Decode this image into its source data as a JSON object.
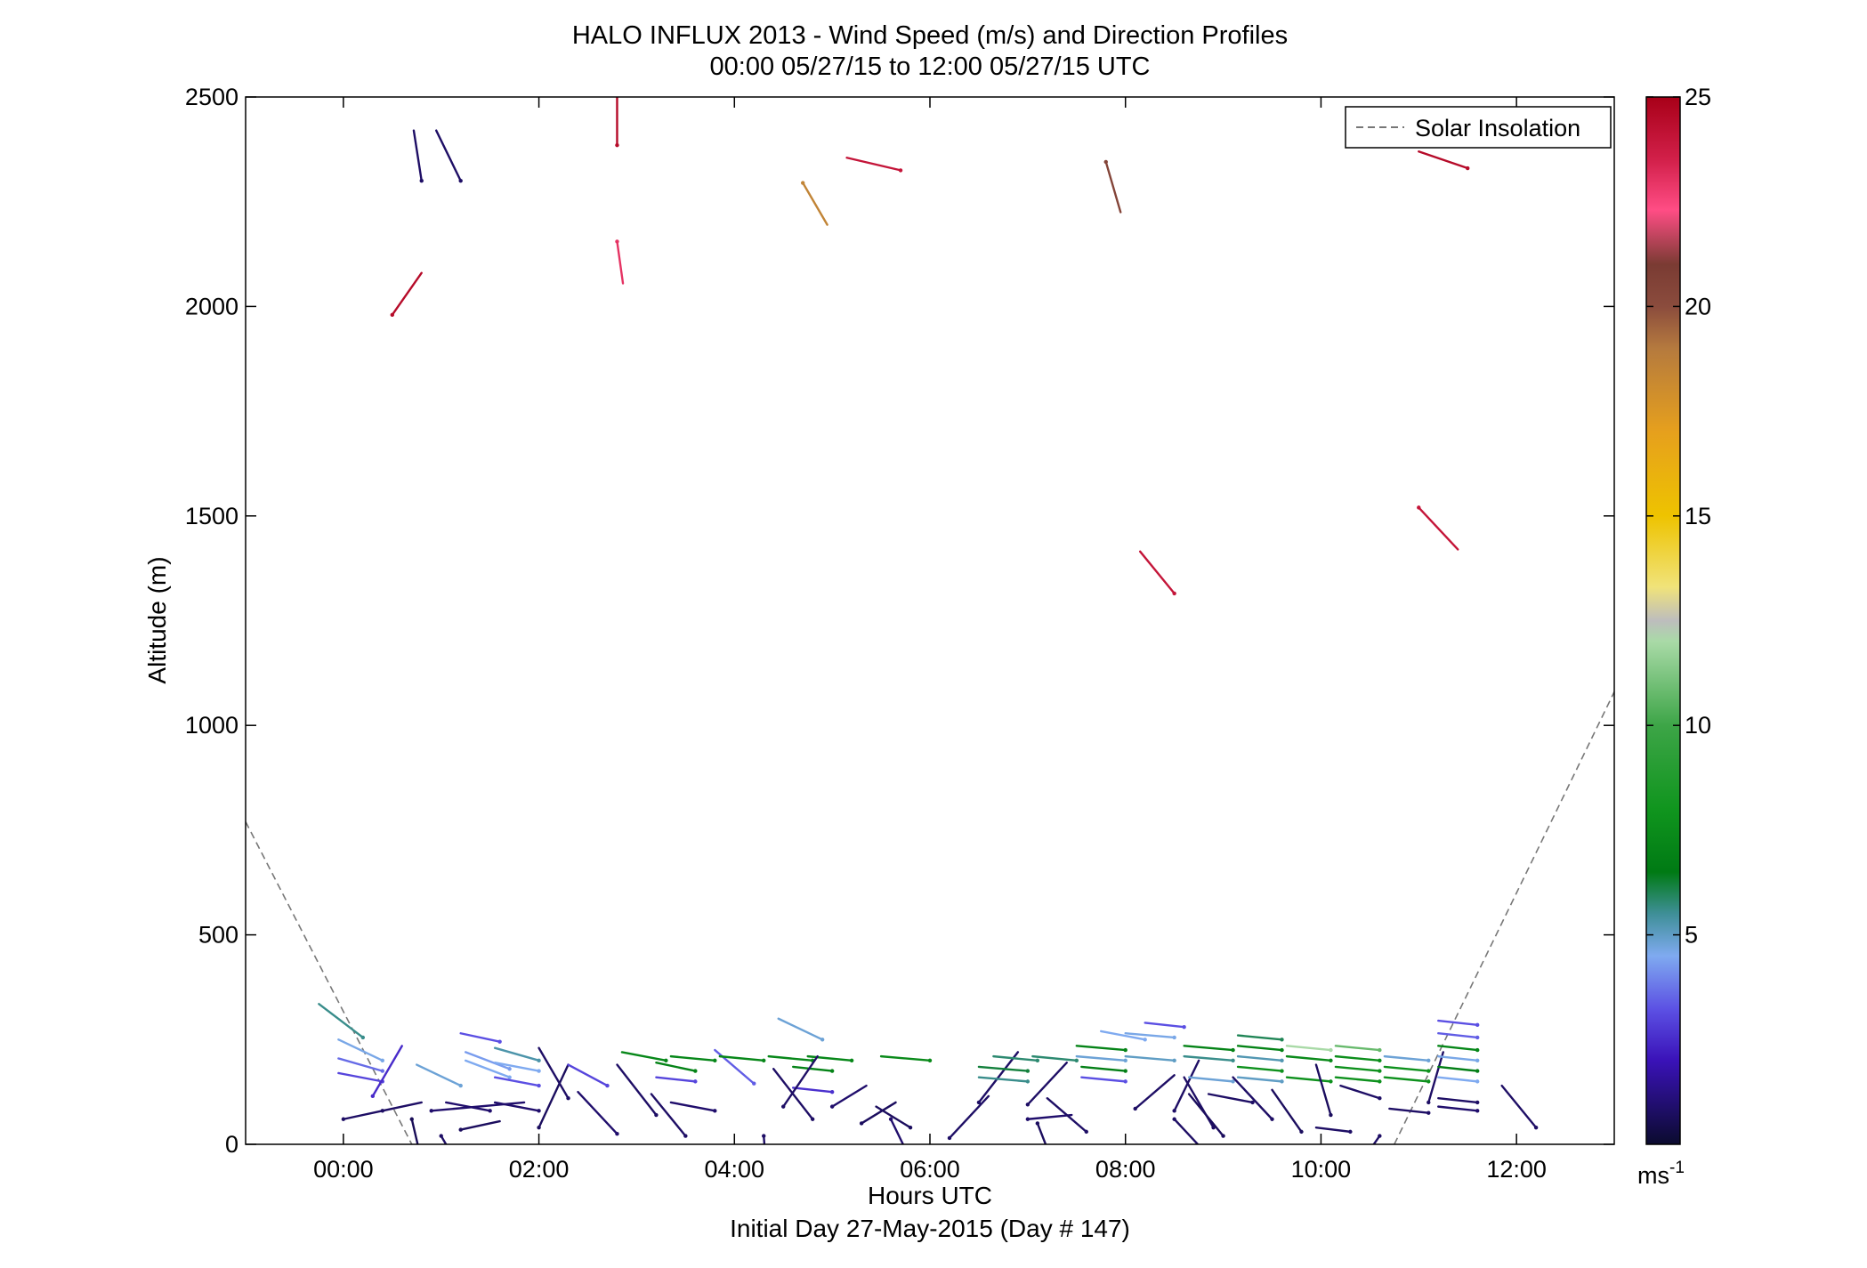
{
  "chart_data": {
    "type": "scatter",
    "title": "HALO INFLUX 2013 - Wind Speed (m/s) and Direction Profiles",
    "subtitle": "00:00 05/27/15 to 12:00 05/27/15  UTC",
    "xlabel": "Hours UTC",
    "xlabel2": "Initial Day 27-May-2015 (Day # 147)",
    "ylabel": "Altitude (m)",
    "xlim": [
      -1,
      13
    ],
    "ylim": [
      0,
      2500
    ],
    "x_ticks": [
      {
        "value": 0,
        "label": "00:00"
      },
      {
        "value": 2,
        "label": "02:00"
      },
      {
        "value": 4,
        "label": "04:00"
      },
      {
        "value": 6,
        "label": "06:00"
      },
      {
        "value": 8,
        "label": "08:00"
      },
      {
        "value": 10,
        "label": "10:00"
      },
      {
        "value": 12,
        "label": "12:00"
      }
    ],
    "y_ticks": [
      {
        "value": 0,
        "label": "0"
      },
      {
        "value": 500,
        "label": "500"
      },
      {
        "value": 1000,
        "label": "1000"
      },
      {
        "value": 1500,
        "label": "1500"
      },
      {
        "value": 2000,
        "label": "2000"
      },
      {
        "value": 2500,
        "label": "2500"
      }
    ],
    "legend": {
      "placement": "top-right",
      "entries": [
        {
          "label": "Solar Insolation",
          "style": "dashed",
          "color": "#777777"
        }
      ]
    },
    "colorbar": {
      "min": 0,
      "max": 25,
      "unit_base": "ms",
      "unit_exp": "-1",
      "ticks": [
        {
          "value": 5,
          "label": "5"
        },
        {
          "value": 10,
          "label": "10"
        },
        {
          "value": 15,
          "label": "15"
        },
        {
          "value": 20,
          "label": "20"
        },
        {
          "value": 25,
          "label": "25"
        }
      ],
      "stops": [
        [
          0,
          "#0b0b2e"
        ],
        [
          2,
          "#3a12b8"
        ],
        [
          3.2,
          "#5b4fe3"
        ],
        [
          4.5,
          "#7faaf0"
        ],
        [
          5.5,
          "#3f8f98"
        ],
        [
          6.5,
          "#007a14"
        ],
        [
          8,
          "#10951e"
        ],
        [
          10,
          "#3da547"
        ],
        [
          12,
          "#a9daa7"
        ],
        [
          12.5,
          "#bdbdbd"
        ],
        [
          13.3,
          "#f0e37a"
        ],
        [
          15,
          "#eec300"
        ],
        [
          17,
          "#e6a01d"
        ],
        [
          19,
          "#b57a3e"
        ],
        [
          20,
          "#8b4c3d"
        ],
        [
          21,
          "#7a3b33"
        ],
        [
          22.3,
          "#ff4d85"
        ],
        [
          23.5,
          "#d2204a"
        ],
        [
          25,
          "#a80018"
        ]
      ]
    },
    "solar_insolation": [
      {
        "x": [
          -1,
          0.7
        ],
        "y": [
          770,
          0
        ]
      },
      {
        "x": [
          10.75,
          13
        ],
        "y": [
          0,
          1080
        ]
      }
    ],
    "wind_barbs": [
      {
        "x": 0.0,
        "y": 60,
        "u": 0.4,
        "v": 0.02,
        "speed": 0.8
      },
      {
        "x": 0.2,
        "y": 255,
        "u": -0.45,
        "v": 0.08,
        "speed": 5.6
      },
      {
        "x": 0.4,
        "y": 200,
        "u": -0.45,
        "v": 0.05,
        "speed": 4.6
      },
      {
        "x": 0.4,
        "y": 175,
        "u": -0.45,
        "v": 0.03,
        "speed": 3.6
      },
      {
        "x": 0.4,
        "y": 150,
        "u": -0.45,
        "v": 0.02,
        "speed": 3.0
      },
      {
        "x": 0.3,
        "y": 115,
        "u": 0.3,
        "v": 0.12,
        "speed": 2.5
      },
      {
        "x": 0.4,
        "y": 80,
        "u": 0.4,
        "v": 0.02,
        "speed": 0.8
      },
      {
        "x": 0.7,
        "y": 60,
        "u": 0.15,
        "v": -0.15,
        "speed": 0.6
      },
      {
        "x": 0.9,
        "y": 80,
        "u": 0.95,
        "v": 0.02,
        "speed": 0.9
      },
      {
        "x": 1.2,
        "y": 35,
        "u": 0.4,
        "v": 0.02,
        "speed": 0.7
      },
      {
        "x": 1.0,
        "y": 20,
        "u": 0.25,
        "v": -0.1,
        "speed": 0.8
      },
      {
        "x": 1.2,
        "y": 140,
        "u": -0.45,
        "v": 0.05,
        "speed": 4.8
      },
      {
        "x": 1.7,
        "y": 180,
        "u": -0.45,
        "v": 0.04,
        "speed": 4.3
      },
      {
        "x": 1.7,
        "y": 160,
        "u": -0.45,
        "v": 0.04,
        "speed": 4.5
      },
      {
        "x": 1.6,
        "y": 245,
        "u": -0.4,
        "v": 0.02,
        "speed": 3.2
      },
      {
        "x": 2.0,
        "y": 200,
        "u": -0.45,
        "v": 0.03,
        "speed": 5.3
      },
      {
        "x": 2.0,
        "y": 175,
        "u": -0.45,
        "v": 0.02,
        "speed": 4.5
      },
      {
        "x": 2.0,
        "y": 140,
        "u": -0.45,
        "v": 0.02,
        "speed": 3.2
      },
      {
        "x": 1.5,
        "y": 80,
        "u": -0.45,
        "v": 0.02,
        "speed": 0.9
      },
      {
        "x": 2.0,
        "y": 80,
        "u": -0.45,
        "v": 0.02,
        "speed": 0.9
      },
      {
        "x": 2.0,
        "y": 40,
        "u": 0.3,
        "v": 0.15,
        "speed": 0.7
      },
      {
        "x": 2.3,
        "y": 110,
        "u": -0.3,
        "v": 0.12,
        "speed": 0.8
      },
      {
        "x": 2.8,
        "y": 25,
        "u": -0.4,
        "v": 0.1,
        "speed": 0.9
      },
      {
        "x": 2.7,
        "y": 140,
        "u": -0.4,
        "v": 0.05,
        "speed": 3.0
      },
      {
        "x": 3.3,
        "y": 200,
        "u": -0.45,
        "v": 0.02,
        "speed": 7.2
      },
      {
        "x": 3.8,
        "y": 200,
        "u": -0.45,
        "v": 0.01,
        "speed": 7.2
      },
      {
        "x": 3.6,
        "y": 175,
        "u": -0.4,
        "v": 0.02,
        "speed": 7.0
      },
      {
        "x": 3.6,
        "y": 150,
        "u": -0.4,
        "v": 0.01,
        "speed": 3.0
      },
      {
        "x": 3.2,
        "y": 70,
        "u": -0.4,
        "v": 0.12,
        "speed": 0.8
      },
      {
        "x": 3.8,
        "y": 80,
        "u": -0.45,
        "v": 0.02,
        "speed": 0.9
      },
      {
        "x": 3.5,
        "y": 20,
        "u": -0.35,
        "v": 0.1,
        "speed": 0.8
      },
      {
        "x": 4.2,
        "y": 145,
        "u": -0.4,
        "v": 0.08,
        "speed": 3.4
      },
      {
        "x": 4.3,
        "y": 200,
        "u": -0.45,
        "v": 0.01,
        "speed": 7.2
      },
      {
        "x": 4.8,
        "y": 200,
        "u": -0.45,
        "v": 0.01,
        "speed": 7.2
      },
      {
        "x": 4.9,
        "y": 250,
        "u": -0.45,
        "v": 0.05,
        "speed": 4.8
      },
      {
        "x": 5.2,
        "y": 200,
        "u": -0.45,
        "v": 0.01,
        "speed": 7.2
      },
      {
        "x": 5.0,
        "y": 175,
        "u": -0.4,
        "v": 0.01,
        "speed": 7.0
      },
      {
        "x": 5.0,
        "y": 125,
        "u": -0.4,
        "v": 0.01,
        "speed": 2.6
      },
      {
        "x": 4.5,
        "y": 90,
        "u": 0.35,
        "v": 0.12,
        "speed": 0.8
      },
      {
        "x": 5.0,
        "y": 90,
        "u": 0.35,
        "v": 0.05,
        "speed": 0.9
      },
      {
        "x": 4.8,
        "y": 60,
        "u": -0.4,
        "v": 0.12,
        "speed": 0.8
      },
      {
        "x": 5.3,
        "y": 50,
        "u": 0.35,
        "v": 0.05,
        "speed": 0.7
      },
      {
        "x": 4.3,
        "y": 20,
        "u": 0.05,
        "v": -0.15,
        "speed": 0.8
      },
      {
        "x": 5.6,
        "y": 60,
        "u": 0.25,
        "v": -0.12,
        "speed": 0.9
      },
      {
        "x": 5.8,
        "y": 40,
        "u": -0.35,
        "v": 0.05,
        "speed": 0.7
      },
      {
        "x": 6.2,
        "y": 15,
        "u": 0.4,
        "v": 0.1,
        "speed": 0.8
      },
      {
        "x": 6.0,
        "y": 200,
        "u": -0.5,
        "v": 0.01,
        "speed": 7.4
      },
      {
        "x": 6.5,
        "y": 100,
        "u": 0.4,
        "v": 0.12,
        "speed": 0.8
      },
      {
        "x": 7.1,
        "y": 200,
        "u": -0.45,
        "v": 0.01,
        "speed": 5.8
      },
      {
        "x": 7.0,
        "y": 175,
        "u": -0.5,
        "v": 0.01,
        "speed": 6.2
      },
      {
        "x": 7.0,
        "y": 150,
        "u": -0.5,
        "v": 0.01,
        "speed": 5.6
      },
      {
        "x": 7.0,
        "y": 95,
        "u": 0.4,
        "v": 0.1,
        "speed": 0.8
      },
      {
        "x": 7.0,
        "y": 60,
        "u": 0.45,
        "v": 0.01,
        "speed": 0.9
      },
      {
        "x": 7.1,
        "y": 50,
        "u": 0.2,
        "v": -0.12,
        "speed": 0.7
      },
      {
        "x": 7.6,
        "y": 30,
        "u": -0.4,
        "v": 0.08,
        "speed": 0.8
      },
      {
        "x": 7.5,
        "y": 200,
        "u": -0.45,
        "v": 0.01,
        "speed": 5.8
      },
      {
        "x": 8.0,
        "y": 200,
        "u": -0.5,
        "v": 0.01,
        "speed": 4.8
      },
      {
        "x": 8.2,
        "y": 250,
        "u": -0.45,
        "v": 0.02,
        "speed": 4.5
      },
      {
        "x": 8.0,
        "y": 225,
        "u": -0.5,
        "v": 0.01,
        "speed": 7.0
      },
      {
        "x": 8.0,
        "y": 175,
        "u": -0.45,
        "v": 0.01,
        "speed": 6.8
      },
      {
        "x": 8.0,
        "y": 150,
        "u": -0.45,
        "v": 0.01,
        "speed": 3.2
      },
      {
        "x": 8.6,
        "y": 280,
        "u": -0.4,
        "v": 0.01,
        "speed": 3.2
      },
      {
        "x": 8.5,
        "y": 255,
        "u": -0.5,
        "v": 0.01,
        "speed": 4.6
      },
      {
        "x": 8.5,
        "y": 200,
        "u": -0.5,
        "v": 0.01,
        "speed": 5.0
      },
      {
        "x": 8.1,
        "y": 85,
        "u": 0.4,
        "v": 0.08,
        "speed": 0.8
      },
      {
        "x": 8.5,
        "y": 80,
        "u": 0.25,
        "v": 0.12,
        "speed": 0.8
      },
      {
        "x": 8.5,
        "y": 60,
        "u": 0.4,
        "v": -0.1,
        "speed": 0.8
      },
      {
        "x": 8.9,
        "y": 40,
        "u": -0.3,
        "v": 0.12,
        "speed": 0.8
      },
      {
        "x": 9.0,
        "y": 20,
        "u": -0.35,
        "v": 0.1,
        "speed": 0.7
      },
      {
        "x": 9.1,
        "y": 200,
        "u": -0.5,
        "v": 0.01,
        "speed": 5.6
      },
      {
        "x": 9.1,
        "y": 225,
        "u": -0.5,
        "v": 0.01,
        "speed": 7.0
      },
      {
        "x": 9.1,
        "y": 150,
        "u": -0.45,
        "v": 0.01,
        "speed": 4.8
      },
      {
        "x": 9.3,
        "y": 100,
        "u": -0.45,
        "v": 0.02,
        "speed": 0.8
      },
      {
        "x": 9.6,
        "y": 250,
        "u": -0.45,
        "v": 0.01,
        "speed": 6.0
      },
      {
        "x": 9.6,
        "y": 225,
        "u": -0.45,
        "v": 0.01,
        "speed": 7.0
      },
      {
        "x": 9.6,
        "y": 200,
        "u": -0.45,
        "v": 0.01,
        "speed": 5.2
      },
      {
        "x": 9.6,
        "y": 175,
        "u": -0.45,
        "v": 0.01,
        "speed": 7.8
      },
      {
        "x": 9.6,
        "y": 150,
        "u": -0.45,
        "v": 0.01,
        "speed": 5.0
      },
      {
        "x": 9.5,
        "y": 60,
        "u": -0.4,
        "v": 0.1,
        "speed": 0.8
      },
      {
        "x": 9.8,
        "y": 30,
        "u": -0.3,
        "v": 0.1,
        "speed": 0.7
      },
      {
        "x": 10.1,
        "y": 225,
        "u": -0.45,
        "v": 0.01,
        "speed": 12.0
      },
      {
        "x": 10.1,
        "y": 200,
        "u": -0.45,
        "v": 0.01,
        "speed": 7.4
      },
      {
        "x": 10.1,
        "y": 150,
        "u": -0.45,
        "v": 0.01,
        "speed": 7.8
      },
      {
        "x": 10.6,
        "y": 225,
        "u": -0.45,
        "v": 0.01,
        "speed": 10.8
      },
      {
        "x": 10.6,
        "y": 200,
        "u": -0.45,
        "v": 0.01,
        "speed": 7.6
      },
      {
        "x": 10.6,
        "y": 175,
        "u": -0.45,
        "v": 0.01,
        "speed": 7.8
      },
      {
        "x": 10.6,
        "y": 150,
        "u": -0.45,
        "v": 0.01,
        "speed": 7.8
      },
      {
        "x": 10.3,
        "y": 30,
        "u": -0.35,
        "v": 0.01,
        "speed": 0.8
      },
      {
        "x": 10.1,
        "y": 70,
        "u": -0.15,
        "v": 0.12,
        "speed": 0.7
      },
      {
        "x": 10.6,
        "y": 110,
        "u": -0.4,
        "v": 0.03,
        "speed": 0.8
      },
      {
        "x": 10.6,
        "y": 20,
        "u": -0.3,
        "v": -0.1,
        "speed": 0.8
      },
      {
        "x": 11.1,
        "y": 200,
        "u": -0.45,
        "v": 0.01,
        "speed": 4.8
      },
      {
        "x": 11.1,
        "y": 175,
        "u": -0.45,
        "v": 0.01,
        "speed": 7.8
      },
      {
        "x": 11.1,
        "y": 150,
        "u": -0.45,
        "v": 0.01,
        "speed": 7.8
      },
      {
        "x": 11.1,
        "y": 75,
        "u": -0.4,
        "v": 0.01,
        "speed": 0.8
      },
      {
        "x": 11.1,
        "y": 100,
        "u": 0.15,
        "v": 0.12,
        "speed": 0.8
      },
      {
        "x": 11.6,
        "y": 285,
        "u": -0.4,
        "v": 0.01,
        "speed": 3.2
      },
      {
        "x": 11.6,
        "y": 255,
        "u": -0.4,
        "v": 0.01,
        "speed": 3.4
      },
      {
        "x": 11.6,
        "y": 225,
        "u": -0.4,
        "v": 0.01,
        "speed": 7.2
      },
      {
        "x": 11.6,
        "y": 200,
        "u": -0.4,
        "v": 0.01,
        "speed": 4.6
      },
      {
        "x": 11.6,
        "y": 175,
        "u": -0.4,
        "v": 0.01,
        "speed": 6.8
      },
      {
        "x": 11.6,
        "y": 150,
        "u": -0.4,
        "v": 0.01,
        "speed": 4.5
      },
      {
        "x": 11.6,
        "y": 100,
        "u": -0.4,
        "v": 0.01,
        "speed": 0.8
      },
      {
        "x": 11.6,
        "y": 80,
        "u": -0.4,
        "v": 0.01,
        "speed": 0.9
      },
      {
        "x": 12.2,
        "y": 40,
        "u": -0.35,
        "v": 0.1,
        "speed": 0.8
      },
      {
        "x": 0.8,
        "y": 2300,
        "u": -0.08,
        "v": 0.12,
        "speed": 0.8
      },
      {
        "x": 1.2,
        "y": 2300,
        "u": -0.25,
        "v": 0.12,
        "speed": 0.8
      },
      {
        "x": 0.5,
        "y": 1980,
        "u": 0.3,
        "v": 0.1,
        "speed": 24.5
      },
      {
        "x": 2.8,
        "y": 2385,
        "u": 0.0,
        "v": 0.12,
        "speed": 24.5
      },
      {
        "x": 2.8,
        "y": 2155,
        "u": 0.06,
        "v": -0.1,
        "speed": 23.0
      },
      {
        "x": 4.7,
        "y": 2295,
        "u": 0.25,
        "v": -0.1,
        "speed": 18.5
      },
      {
        "x": 5.7,
        "y": 2325,
        "u": -0.55,
        "v": 0.03,
        "speed": 24.0
      },
      {
        "x": 7.8,
        "y": 2345,
        "u": 0.15,
        "v": -0.12,
        "speed": 20.5
      },
      {
        "x": 8.5,
        "y": 1315,
        "u": -0.35,
        "v": 0.1,
        "speed": 24.0
      },
      {
        "x": 11.0,
        "y": 1520,
        "u": 0.4,
        "v": -0.1,
        "speed": 24.0
      },
      {
        "x": 11.5,
        "y": 2330,
        "u": -0.5,
        "v": 0.04,
        "speed": 24.5
      }
    ]
  }
}
